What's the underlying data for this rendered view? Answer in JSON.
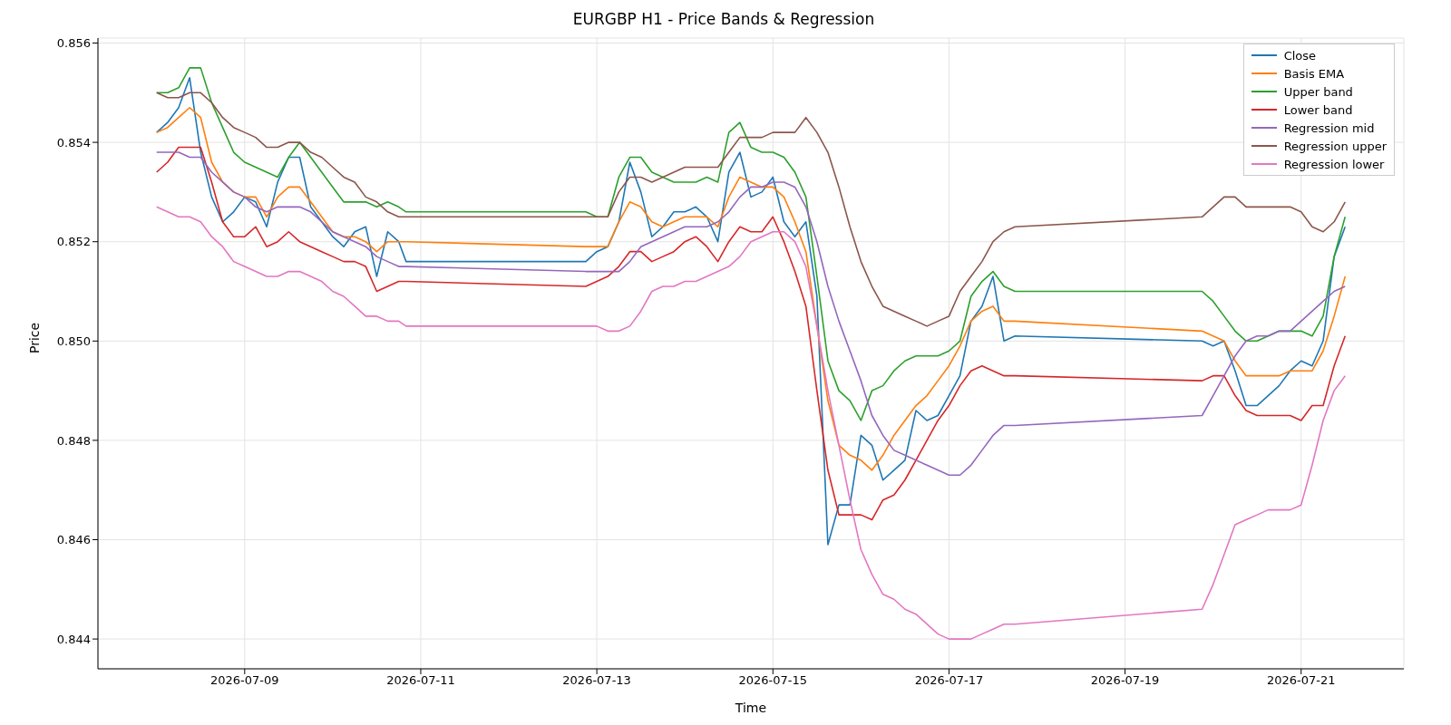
{
  "chart_data": {
    "type": "line",
    "title": "EURGBP H1 - Price Bands & Regression",
    "xlabel": "Time",
    "ylabel": "Price",
    "x": [
      "2026-07-08T00:00",
      "2026-07-08T03:00",
      "2026-07-08T06:00",
      "2026-07-08T09:00",
      "2026-07-08T12:00",
      "2026-07-08T15:00",
      "2026-07-08T18:00",
      "2026-07-08T21:00",
      "2026-07-09T00:00",
      "2026-07-09T03:00",
      "2026-07-09T06:00",
      "2026-07-09T09:00",
      "2026-07-09T12:00",
      "2026-07-09T15:00",
      "2026-07-09T18:00",
      "2026-07-09T21:00",
      "2026-07-10T00:00",
      "2026-07-10T03:00",
      "2026-07-10T06:00",
      "2026-07-10T09:00",
      "2026-07-10T12:00",
      "2026-07-10T15:00",
      "2026-07-10T18:00",
      "2026-07-10T20:00",
      "2026-07-12T21:00",
      "2026-07-13T00:00",
      "2026-07-13T03:00",
      "2026-07-13T06:00",
      "2026-07-13T09:00",
      "2026-07-13T12:00",
      "2026-07-13T15:00",
      "2026-07-13T18:00",
      "2026-07-13T21:00",
      "2026-07-14T00:00",
      "2026-07-14T03:00",
      "2026-07-14T06:00",
      "2026-07-14T09:00",
      "2026-07-14T12:00",
      "2026-07-14T15:00",
      "2026-07-14T18:00",
      "2026-07-14T21:00",
      "2026-07-15T00:00",
      "2026-07-15T03:00",
      "2026-07-15T06:00",
      "2026-07-15T09:00",
      "2026-07-15T12:00",
      "2026-07-15T15:00",
      "2026-07-15T18:00",
      "2026-07-15T21:00",
      "2026-07-16T00:00",
      "2026-07-16T03:00",
      "2026-07-16T06:00",
      "2026-07-16T09:00",
      "2026-07-16T12:00",
      "2026-07-16T15:00",
      "2026-07-16T18:00",
      "2026-07-16T21:00",
      "2026-07-17T00:00",
      "2026-07-17T03:00",
      "2026-07-17T06:00",
      "2026-07-17T09:00",
      "2026-07-17T12:00",
      "2026-07-17T15:00",
      "2026-07-17T18:00",
      "2026-07-19T21:00",
      "2026-07-20T00:00",
      "2026-07-20T03:00",
      "2026-07-20T06:00",
      "2026-07-20T09:00",
      "2026-07-20T12:00",
      "2026-07-20T15:00",
      "2026-07-20T18:00",
      "2026-07-20T21:00",
      "2026-07-21T00:00",
      "2026-07-21T03:00",
      "2026-07-21T06:00",
      "2026-07-21T09:00",
      "2026-07-21T12:00"
    ],
    "series": [
      {
        "name": "Close",
        "color": "#1f77b4",
        "values": [
          0.8542,
          0.8544,
          0.8547,
          0.8553,
          0.8538,
          0.8529,
          0.8524,
          0.8526,
          0.8529,
          0.8528,
          0.8523,
          0.8532,
          0.8537,
          0.8537,
          0.8527,
          0.8524,
          0.8521,
          0.8519,
          0.8522,
          0.8523,
          0.8513,
          0.8522,
          0.852,
          0.8516,
          0.8516,
          0.8518,
          0.8519,
          0.8524,
          0.8536,
          0.853,
          0.8521,
          0.8523,
          0.8526,
          0.8526,
          0.8527,
          0.8525,
          0.852,
          0.8534,
          0.8538,
          0.8529,
          0.853,
          0.8533,
          0.8524,
          0.8521,
          0.8524,
          0.8509,
          0.8459,
          0.8467,
          0.8467,
          0.8481,
          0.8479,
          0.8472,
          0.8474,
          0.8476,
          0.8486,
          0.8484,
          0.8485,
          0.8489,
          0.8493,
          0.8504,
          0.8507,
          0.8513,
          0.85,
          0.8501,
          0.85,
          0.8499,
          0.85,
          0.8494,
          0.8487,
          0.8487,
          0.8489,
          0.8491,
          0.8494,
          0.8496,
          0.8495,
          0.85,
          0.8517,
          0.8523
        ]
      },
      {
        "name": "Basis EMA",
        "color": "#ff7f0e",
        "values": [
          0.8542,
          0.8543,
          0.8545,
          0.8547,
          0.8545,
          0.8536,
          0.8532,
          0.853,
          0.8529,
          0.8529,
          0.8525,
          0.8529,
          0.8531,
          0.8531,
          0.8528,
          0.8525,
          0.8522,
          0.8521,
          0.8521,
          0.852,
          0.8518,
          0.852,
          0.852,
          0.852,
          0.8519,
          0.8519,
          0.8519,
          0.8524,
          0.8528,
          0.8527,
          0.8524,
          0.8523,
          0.8524,
          0.8525,
          0.8525,
          0.8525,
          0.8523,
          0.8529,
          0.8533,
          0.8532,
          0.8531,
          0.8531,
          0.8529,
          0.8524,
          0.8518,
          0.8503,
          0.8488,
          0.8479,
          0.8477,
          0.8476,
          0.8474,
          0.8477,
          0.8481,
          0.8484,
          0.8487,
          0.8489,
          0.8492,
          0.8495,
          0.8499,
          0.8504,
          0.8506,
          0.8507,
          0.8504,
          0.8504,
          0.8502,
          0.8501,
          0.85,
          0.8496,
          0.8493,
          0.8493,
          0.8493,
          0.8493,
          0.8494,
          0.8494,
          0.8494,
          0.8498,
          0.8505,
          0.8513
        ]
      },
      {
        "name": "Upper band",
        "color": "#2ca02c",
        "values": [
          0.855,
          0.855,
          0.8551,
          0.8555,
          0.8555,
          0.8548,
          0.8543,
          0.8538,
          0.8536,
          0.8535,
          0.8534,
          0.8533,
          0.8537,
          0.854,
          0.8537,
          0.8534,
          0.8531,
          0.8528,
          0.8528,
          0.8528,
          0.8527,
          0.8528,
          0.8527,
          0.8526,
          0.8526,
          0.8525,
          0.8525,
          0.8533,
          0.8537,
          0.8537,
          0.8534,
          0.8533,
          0.8532,
          0.8532,
          0.8532,
          0.8533,
          0.8532,
          0.8542,
          0.8544,
          0.8539,
          0.8538,
          0.8538,
          0.8537,
          0.8534,
          0.8529,
          0.8513,
          0.8496,
          0.849,
          0.8488,
          0.8484,
          0.849,
          0.8491,
          0.8494,
          0.8496,
          0.8497,
          0.8497,
          0.8497,
          0.8498,
          0.85,
          0.8509,
          0.8512,
          0.8514,
          0.8511,
          0.851,
          0.851,
          0.8508,
          0.8505,
          0.8502,
          0.85,
          0.85,
          0.8501,
          0.8502,
          0.8502,
          0.8502,
          0.8501,
          0.8505,
          0.8517,
          0.8525
        ]
      },
      {
        "name": "Lower band",
        "color": "#d62728",
        "values": [
          0.8534,
          0.8536,
          0.8539,
          0.8539,
          0.8539,
          0.8532,
          0.8524,
          0.8521,
          0.8521,
          0.8523,
          0.8519,
          0.852,
          0.8522,
          0.852,
          0.8519,
          0.8518,
          0.8517,
          0.8516,
          0.8516,
          0.8515,
          0.851,
          0.8511,
          0.8512,
          0.8512,
          0.8511,
          0.8512,
          0.8513,
          0.8515,
          0.8518,
          0.8518,
          0.8516,
          0.8517,
          0.8518,
          0.852,
          0.8521,
          0.8519,
          0.8516,
          0.852,
          0.8523,
          0.8522,
          0.8522,
          0.8525,
          0.852,
          0.8514,
          0.8507,
          0.849,
          0.8474,
          0.8465,
          0.8465,
          0.8465,
          0.8464,
          0.8468,
          0.8469,
          0.8472,
          0.8476,
          0.848,
          0.8484,
          0.8487,
          0.8491,
          0.8494,
          0.8495,
          0.8494,
          0.8493,
          0.8493,
          0.8492,
          0.8493,
          0.8493,
          0.8489,
          0.8486,
          0.8485,
          0.8485,
          0.8485,
          0.8485,
          0.8484,
          0.8487,
          0.8487,
          0.8495,
          0.8501
        ]
      },
      {
        "name": "Regression mid",
        "color": "#9467bd",
        "values": [
          0.8538,
          0.8538,
          0.8538,
          0.8537,
          0.8537,
          0.8534,
          0.8532,
          0.853,
          0.8529,
          0.8527,
          0.8526,
          0.8527,
          0.8527,
          0.8527,
          0.8526,
          0.8524,
          0.8522,
          0.8521,
          0.852,
          0.8519,
          0.8517,
          0.8516,
          0.8515,
          0.8515,
          0.8514,
          0.8514,
          0.8514,
          0.8514,
          0.8516,
          0.8519,
          0.852,
          0.8521,
          0.8522,
          0.8523,
          0.8523,
          0.8523,
          0.8524,
          0.8526,
          0.8529,
          0.8531,
          0.8531,
          0.8532,
          0.8532,
          0.8531,
          0.8527,
          0.852,
          0.8511,
          0.8504,
          0.8498,
          0.8492,
          0.8485,
          0.8481,
          0.8478,
          0.8477,
          0.8476,
          0.8475,
          0.8474,
          0.8473,
          0.8473,
          0.8475,
          0.8478,
          0.8481,
          0.8483,
          0.8483,
          0.8485,
          0.8489,
          0.8493,
          0.8497,
          0.85,
          0.8501,
          0.8501,
          0.8502,
          0.8502,
          0.8504,
          0.8506,
          0.8508,
          0.851,
          0.8511
        ]
      },
      {
        "name": "Regression upper",
        "color": "#8c564b",
        "values": [
          0.855,
          0.8549,
          0.8549,
          0.855,
          0.855,
          0.8548,
          0.8545,
          0.8543,
          0.8542,
          0.8541,
          0.8539,
          0.8539,
          0.854,
          0.854,
          0.8538,
          0.8537,
          0.8535,
          0.8533,
          0.8532,
          0.8529,
          0.8528,
          0.8526,
          0.8525,
          0.8525,
          0.8525,
          0.8525,
          0.8525,
          0.853,
          0.8533,
          0.8533,
          0.8532,
          0.8533,
          0.8534,
          0.8535,
          0.8535,
          0.8535,
          0.8535,
          0.8538,
          0.8541,
          0.8541,
          0.8541,
          0.8542,
          0.8542,
          0.8542,
          0.8545,
          0.8542,
          0.8538,
          0.8531,
          0.8523,
          0.8516,
          0.8511,
          0.8507,
          0.8506,
          0.8505,
          0.8504,
          0.8503,
          0.8504,
          0.8505,
          0.851,
          0.8513,
          0.8516,
          0.852,
          0.8522,
          0.8523,
          0.8525,
          0.8527,
          0.8529,
          0.8529,
          0.8527,
          0.8527,
          0.8527,
          0.8527,
          0.8527,
          0.8526,
          0.8523,
          0.8522,
          0.8524,
          0.8528
        ]
      },
      {
        "name": "Regression lower",
        "color": "#e377c2",
        "values": [
          0.8527,
          0.8526,
          0.8525,
          0.8525,
          0.8524,
          0.8521,
          0.8519,
          0.8516,
          0.8515,
          0.8514,
          0.8513,
          0.8513,
          0.8514,
          0.8514,
          0.8513,
          0.8512,
          0.851,
          0.8509,
          0.8507,
          0.8505,
          0.8505,
          0.8504,
          0.8504,
          0.8503,
          0.8503,
          0.8503,
          0.8502,
          0.8502,
          0.8503,
          0.8506,
          0.851,
          0.8511,
          0.8511,
          0.8512,
          0.8512,
          0.8513,
          0.8514,
          0.8515,
          0.8517,
          0.852,
          0.8521,
          0.8522,
          0.8522,
          0.852,
          0.8515,
          0.8503,
          0.849,
          0.8479,
          0.8468,
          0.8458,
          0.8453,
          0.8449,
          0.8448,
          0.8446,
          0.8445,
          0.8443,
          0.8441,
          0.844,
          0.844,
          0.844,
          0.8441,
          0.8442,
          0.8443,
          0.8443,
          0.8446,
          0.8451,
          0.8457,
          0.8463,
          0.8464,
          0.8465,
          0.8466,
          0.8466,
          0.8466,
          0.8467,
          0.8475,
          0.8484,
          0.849,
          0.8493
        ]
      }
    ],
    "xlim": [
      "2026-07-07T08:00",
      "2026-07-22T04:00"
    ],
    "xticks": [
      "2026-07-09",
      "2026-07-11",
      "2026-07-13",
      "2026-07-15",
      "2026-07-17",
      "2026-07-19",
      "2026-07-21"
    ],
    "ylim": [
      0.8434,
      0.8561
    ],
    "yticks": [
      0.844,
      0.846,
      0.848,
      {
        "value": 0.85,
        "label": "0.850"
      },
      0.852,
      0.854,
      0.856
    ],
    "grid": true,
    "legend": "top right",
    "marker": "none",
    "line_style": "solid"
  }
}
